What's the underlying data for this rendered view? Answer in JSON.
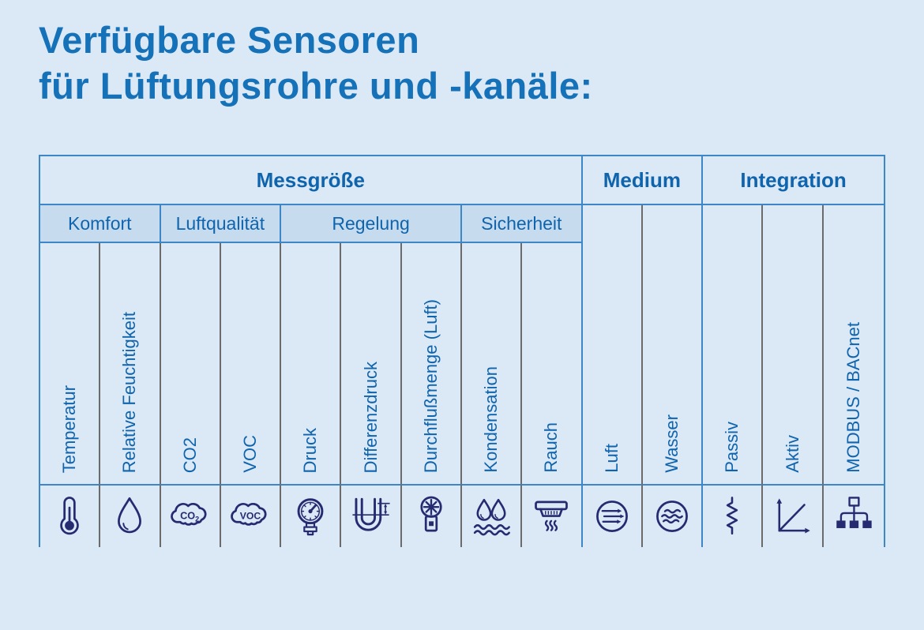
{
  "title": {
    "line1": "Verfügbare Sensoren",
    "line2": "für Lüftungsrohre und -kanäle:"
  },
  "table": {
    "top_headers": [
      {
        "label": "Messgröße",
        "col_start": 1,
        "col_span": 9
      },
      {
        "label": "Medium",
        "col_start": 10,
        "col_span": 2
      },
      {
        "label": "Integration",
        "col_start": 12,
        "col_span": 3
      }
    ],
    "sub_headers": [
      {
        "label": "Komfort",
        "col_start": 1,
        "col_span": 2
      },
      {
        "label": "Luftqualität",
        "col_start": 3,
        "col_span": 2
      },
      {
        "label": "Regelung",
        "col_start": 5,
        "col_span": 3
      },
      {
        "label": "Sicherheit",
        "col_start": 8,
        "col_span": 2
      }
    ],
    "columns": [
      {
        "label": "Temperatur",
        "group": "Komfort",
        "icon": "thermometer-icon"
      },
      {
        "label": "Relative Feuchtigkeit",
        "group": "Komfort",
        "icon": "water-drop-icon"
      },
      {
        "label": "CO2",
        "group": "Luftqualität",
        "icon": "co2-cloud-icon",
        "icon_text": "CO2"
      },
      {
        "label": "VOC",
        "group": "Luftqualität",
        "icon": "voc-cloud-icon",
        "icon_text": "VOC"
      },
      {
        "label": "Druck",
        "group": "Regelung",
        "icon": "pressure-gauge-icon"
      },
      {
        "label": "Differenzdruck",
        "group": "Regelung",
        "icon": "u-tube-manometer-icon"
      },
      {
        "label": "Durchflußmenge (Luft)",
        "group": "Regelung",
        "icon": "anemometer-icon"
      },
      {
        "label": "Kondensation",
        "group": "Sicherheit",
        "icon": "condensation-icon"
      },
      {
        "label": "Rauch",
        "group": "Sicherheit",
        "icon": "smoke-detector-icon"
      },
      {
        "label": "Luft",
        "group": "Medium",
        "icon": "air-flow-icon"
      },
      {
        "label": "Wasser",
        "group": "Medium",
        "icon": "water-waves-icon"
      },
      {
        "label": "Passiv",
        "group": "Integration",
        "icon": "resistor-icon"
      },
      {
        "label": "Aktiv",
        "group": "Integration",
        "icon": "graph-axes-icon"
      },
      {
        "label": "MODBUS / BACnet",
        "group": "Integration",
        "icon": "network-tree-icon"
      }
    ]
  },
  "colors": {
    "page_background": "#dbe8f5",
    "subheader_background": "#c6dbee",
    "border_blue": "#3d86c7",
    "separator_grey": "#6b6b6b",
    "text_blue": "#0f64ae",
    "title_blue": "#1571b8",
    "icon_navy": "#262a70"
  }
}
